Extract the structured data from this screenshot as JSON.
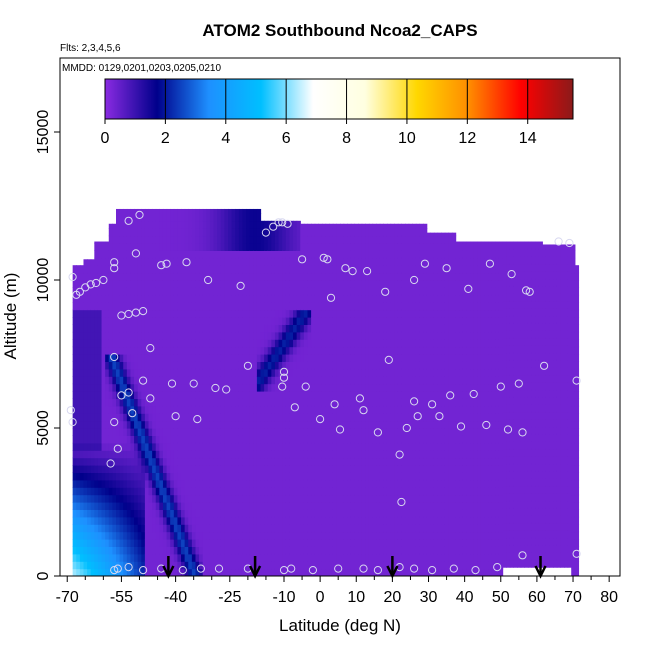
{
  "chart_data": {
    "type": "heatmap",
    "title": "ATOM2 Southbound Ncoa2_CAPS",
    "flights_label": "Flts: 2,3,4,5,6",
    "dates_label": "MMDD: 0129,0201,0203,0205,0210",
    "xlabel": "Latitude (deg N)",
    "ylabel": "Altitude (m)",
    "xlim": [
      -72,
      83
    ],
    "ylim": [
      0,
      17500
    ],
    "x_ticks": [
      -70,
      -55,
      -40,
      -25,
      -10,
      0,
      10,
      20,
      30,
      40,
      50,
      60,
      70,
      80
    ],
    "x_minor_ticks": [
      -65,
      -60,
      -50,
      -45,
      -35,
      -30,
      -20,
      -15,
      -5,
      5,
      15,
      25,
      35,
      45,
      55,
      65,
      75
    ],
    "y_ticks": [
      0,
      5000,
      10000,
      15000
    ],
    "colorbar": {
      "range": [
        0,
        15.5
      ],
      "ticks": [
        0,
        2,
        4,
        6,
        8,
        10,
        12,
        14
      ],
      "stops": [
        "#8a2be2",
        "#00008b",
        "#1e90ff",
        "#00bfff",
        "#ffffff",
        "#ffffe0",
        "#ffd700",
        "#ff8c00",
        "#ff0000",
        "#8b1a1a"
      ]
    },
    "background_value": 0.3,
    "arrows_x": [
      -42,
      -18,
      20,
      61
    ],
    "samples": [
      {
        "x": -68.5,
        "y": 10100
      },
      {
        "x": -67.5,
        "y": 9500
      },
      {
        "x": -66.5,
        "y": 9600
      },
      {
        "x": -65,
        "y": 9750
      },
      {
        "x": -63.5,
        "y": 9850
      },
      {
        "x": -62,
        "y": 9900
      },
      {
        "x": -60,
        "y": 10000
      },
      {
        "x": -57,
        "y": 10400
      },
      {
        "x": -57,
        "y": 10600
      },
      {
        "x": -55,
        "y": 8800
      },
      {
        "x": -53,
        "y": 8850
      },
      {
        "x": -51,
        "y": 8900
      },
      {
        "x": -49,
        "y": 8950
      },
      {
        "x": -47,
        "y": 7700
      },
      {
        "x": -44,
        "y": 10500
      },
      {
        "x": -42.5,
        "y": 10550
      },
      {
        "x": -37,
        "y": 10600
      },
      {
        "x": -31,
        "y": 10000
      },
      {
        "x": -22,
        "y": 9800
      },
      {
        "x": -53,
        "y": 12000
      },
      {
        "x": -50,
        "y": 12200
      },
      {
        "x": -51,
        "y": 10900
      },
      {
        "x": -15,
        "y": 11600
      },
      {
        "x": -13,
        "y": 11800
      },
      {
        "x": -11.5,
        "y": 11950
      },
      {
        "x": -10.5,
        "y": 11950
      },
      {
        "x": -9,
        "y": 11900
      },
      {
        "x": -5,
        "y": 10700
      },
      {
        "x": 1,
        "y": 10750
      },
      {
        "x": 2,
        "y": 10700
      },
      {
        "x": 3,
        "y": 9400
      },
      {
        "x": 7,
        "y": 10400
      },
      {
        "x": 9,
        "y": 10300
      },
      {
        "x": 13,
        "y": 10300
      },
      {
        "x": 18,
        "y": 9600
      },
      {
        "x": 26,
        "y": 10000
      },
      {
        "x": 29,
        "y": 10550
      },
      {
        "x": 35,
        "y": 10400
      },
      {
        "x": 41,
        "y": 9700
      },
      {
        "x": 47,
        "y": 10550
      },
      {
        "x": 53,
        "y": 10200
      },
      {
        "x": 57,
        "y": 9650
      },
      {
        "x": 58,
        "y": 9600
      },
      {
        "x": 66,
        "y": 11300
      },
      {
        "x": 69,
        "y": 11250
      },
      {
        "x": -57,
        "y": 7400
      },
      {
        "x": -49,
        "y": 6600
      },
      {
        "x": -47,
        "y": 6000
      },
      {
        "x": -41,
        "y": 6500
      },
      {
        "x": -35,
        "y": 6500
      },
      {
        "x": -29,
        "y": 6350
      },
      {
        "x": -26,
        "y": 6300
      },
      {
        "x": -20,
        "y": 7100
      },
      {
        "x": -10,
        "y": 6700
      },
      {
        "x": -10,
        "y": 6900
      },
      {
        "x": -10.5,
        "y": 6400
      },
      {
        "x": -7,
        "y": 5700
      },
      {
        "x": -4,
        "y": 6400
      },
      {
        "x": 0,
        "y": 5300
      },
      {
        "x": 4,
        "y": 5800
      },
      {
        "x": 5.5,
        "y": 4950
      },
      {
        "x": 11,
        "y": 6000
      },
      {
        "x": 12,
        "y": 5600
      },
      {
        "x": 16,
        "y": 4850
      },
      {
        "x": 19,
        "y": 7300
      },
      {
        "x": 24,
        "y": 5000
      },
      {
        "x": 26,
        "y": 5900
      },
      {
        "x": 27,
        "y": 5400
      },
      {
        "x": 31,
        "y": 5800
      },
      {
        "x": 33,
        "y": 5400
      },
      {
        "x": 36,
        "y": 6100
      },
      {
        "x": 39,
        "y": 5050
      },
      {
        "x": 42.5,
        "y": 6150
      },
      {
        "x": 46,
        "y": 5100
      },
      {
        "x": 50,
        "y": 6400
      },
      {
        "x": 52,
        "y": 4950
      },
      {
        "x": 55,
        "y": 6500
      },
      {
        "x": 56,
        "y": 4850
      },
      {
        "x": 62,
        "y": 7100
      },
      {
        "x": 71,
        "y": 6600
      },
      {
        "x": -69,
        "y": 5600
      },
      {
        "x": -68.5,
        "y": 5200
      },
      {
        "x": -55,
        "y": 6100
      },
      {
        "x": -53,
        "y": 6200
      },
      {
        "x": -52,
        "y": 5500
      },
      {
        "x": -57,
        "y": 5200
      },
      {
        "x": -40,
        "y": 5400
      },
      {
        "x": -34,
        "y": 5300
      },
      {
        "x": -56,
        "y": 4300
      },
      {
        "x": -58,
        "y": 3800
      },
      {
        "x": 22,
        "y": 4100
      },
      {
        "x": 22.5,
        "y": 2500
      },
      {
        "x": -57,
        "y": 200
      },
      {
        "x": -56,
        "y": 250
      },
      {
        "x": -53,
        "y": 300
      },
      {
        "x": -49,
        "y": 200
      },
      {
        "x": -44,
        "y": 250
      },
      {
        "x": -38,
        "y": 200
      },
      {
        "x": -33,
        "y": 250
      },
      {
        "x": -28,
        "y": 250
      },
      {
        "x": -20,
        "y": 250
      },
      {
        "x": -10,
        "y": 200
      },
      {
        "x": -8,
        "y": 250
      },
      {
        "x": -2,
        "y": 200
      },
      {
        "x": 5,
        "y": 250
      },
      {
        "x": 12,
        "y": 250
      },
      {
        "x": 16,
        "y": 200
      },
      {
        "x": 22,
        "y": 300
      },
      {
        "x": 26,
        "y": 250
      },
      {
        "x": 31,
        "y": 200
      },
      {
        "x": 37,
        "y": 250
      },
      {
        "x": 43,
        "y": 200
      },
      {
        "x": 49,
        "y": 300
      },
      {
        "x": 56,
        "y": 700
      },
      {
        "x": 71,
        "y": 750
      }
    ]
  }
}
